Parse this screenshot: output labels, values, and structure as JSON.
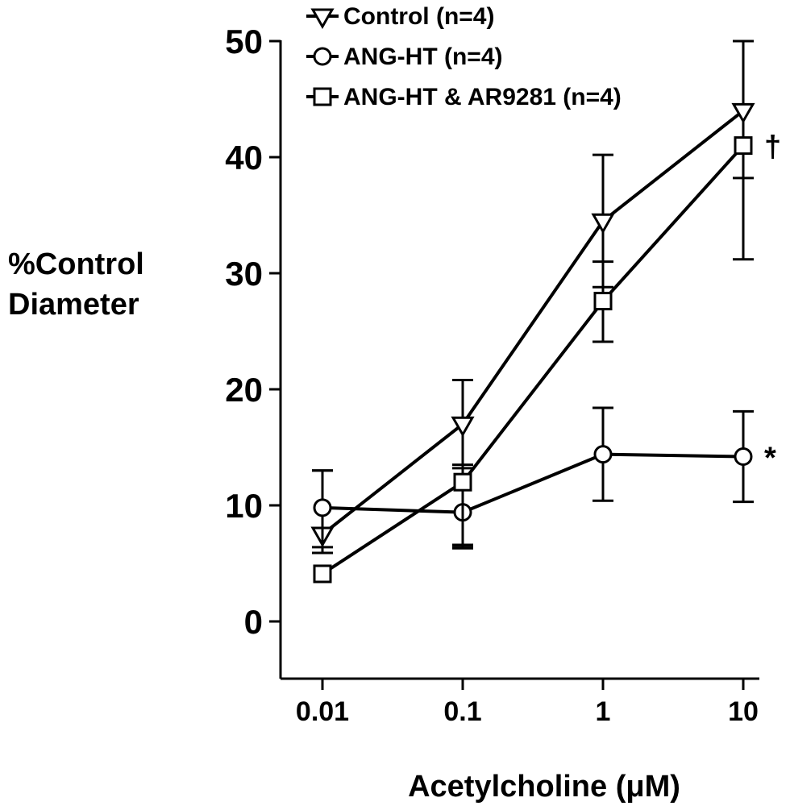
{
  "chart_data": {
    "type": "line",
    "x_scale": "log",
    "x": [
      0.01,
      0.1,
      1,
      10
    ],
    "x_tick_labels": [
      "0.01",
      "0.1",
      "1",
      "10"
    ],
    "ylim": [
      -5,
      50
    ],
    "y_ticks": [
      0,
      10,
      20,
      30,
      40,
      50
    ],
    "y_tick_labels": [
      "0",
      "10",
      "20",
      "30",
      "40",
      "50"
    ],
    "ylabel_lines": [
      "%Control",
      "Diameter"
    ],
    "xlabel": "Acetylcholine (μM)",
    "grid": false,
    "legend_position": "top",
    "series": [
      {
        "name": "Control (n=4)",
        "marker": "triangle-down",
        "values": [
          7.5,
          17,
          34.5,
          44
        ],
        "error_upper": [
          13,
          20.8,
          40.2,
          50
        ],
        "error_lower": [
          5.9,
          6.3,
          28.8,
          38.2
        ]
      },
      {
        "name": "ANG-HT (n=4)",
        "marker": "circle",
        "values": [
          9.8,
          9.4,
          14.4,
          14.2
        ],
        "error_upper": [
          13,
          13.5,
          18.4,
          18.1
        ],
        "error_lower": [
          6.4,
          6.5,
          10.4,
          10.3
        ]
      },
      {
        "name": "ANG-HT & AR9281 (n=4)",
        "marker": "square",
        "values": [
          4.1,
          12,
          27.6,
          41
        ],
        "error_upper": [
          4.1,
          13.2,
          31,
          41
        ],
        "error_lower": [
          4.1,
          6.6,
          24.1,
          31.2
        ]
      }
    ],
    "annotations": [
      {
        "text": "†",
        "series_index": 2,
        "x": 10
      },
      {
        "text": "*",
        "series_index": 1,
        "x": 10
      }
    ]
  }
}
